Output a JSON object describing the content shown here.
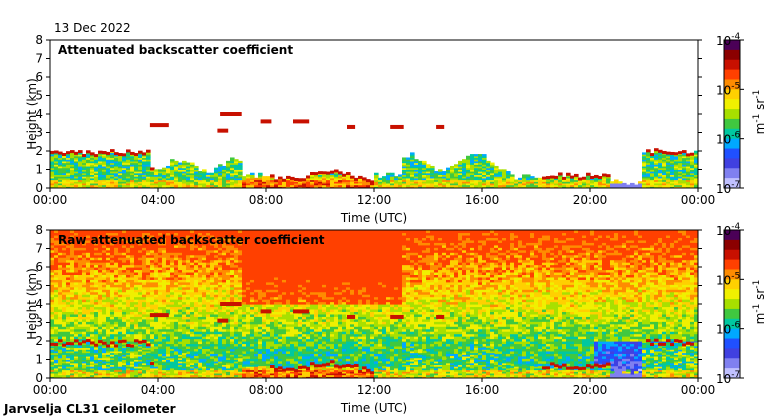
{
  "date": "13 Dec 2022",
  "footer": "Jarvselja CL31 ceilometer",
  "chart_data": [
    {
      "type": "heatmap",
      "title": "Attenuated backscatter coefficient",
      "xlabel": "Time (UTC)",
      "ylabel": "Height (km)",
      "xticks": [
        "00:00",
        "04:00",
        "08:00",
        "12:00",
        "16:00",
        "20:00",
        "00:00"
      ],
      "xlim_hours": [
        0,
        24
      ],
      "ylim": [
        0,
        8
      ],
      "yticks": [
        0,
        1,
        2,
        3,
        4,
        5,
        6,
        7,
        8
      ],
      "colorbar": {
        "scale": "log",
        "range": [
          1e-07,
          0.0001
        ],
        "ticks": [
          {
            "base": "10",
            "exp": "-4",
            "value": 0.0001
          },
          {
            "base": "10",
            "exp": "-5",
            "value": 1e-05
          },
          {
            "base": "10",
            "exp": "-6",
            "value": 1e-06
          },
          {
            "base": "10",
            "exp": "-7",
            "value": 1e-07
          }
        ],
        "unit_main": "m",
        "unit_exp1": "-1",
        "unit_mid": " sr",
        "unit_exp2": "-1",
        "colors": [
          "#4b0057",
          "#8b0000",
          "#c81000",
          "#ff4000",
          "#ff8c00",
          "#ffd000",
          "#f0f000",
          "#a8e000",
          "#40c840",
          "#00c8a0",
          "#00a8ff",
          "#2050ff",
          "#4040e0",
          "#8080f0",
          "#c0c0ff"
        ]
      }
    },
    {
      "type": "heatmap",
      "title": "Raw attenuated backscatter coefficient",
      "xlabel": "Time (UTC)",
      "ylabel": "Height (km)",
      "xticks": [
        "00:00",
        "04:00",
        "08:00",
        "12:00",
        "16:00",
        "20:00",
        "00:00"
      ],
      "xlim_hours": [
        0,
        24
      ],
      "ylim": [
        0,
        8
      ],
      "yticks": [
        0,
        1,
        2,
        3,
        4,
        5,
        6,
        7,
        8
      ],
      "colorbar": {
        "scale": "log",
        "range": [
          1e-07,
          0.0001
        ],
        "ticks": [
          {
            "base": "10",
            "exp": "-4",
            "value": 0.0001
          },
          {
            "base": "10",
            "exp": "-5",
            "value": 1e-05
          },
          {
            "base": "10",
            "exp": "-6",
            "value": 1e-06
          },
          {
            "base": "10",
            "exp": "-7",
            "value": 1e-07
          }
        ],
        "unit_main": "m",
        "unit_exp1": "-1",
        "unit_mid": " sr",
        "unit_exp2": "-1",
        "colors": [
          "#4b0057",
          "#8b0000",
          "#c81000",
          "#ff4000",
          "#ff8c00",
          "#ffd000",
          "#f0f000",
          "#a8e000",
          "#40c840",
          "#00c8a0",
          "#00a8ff",
          "#2050ff",
          "#4040e0",
          "#8080f0",
          "#c0c0ff"
        ]
      }
    }
  ]
}
